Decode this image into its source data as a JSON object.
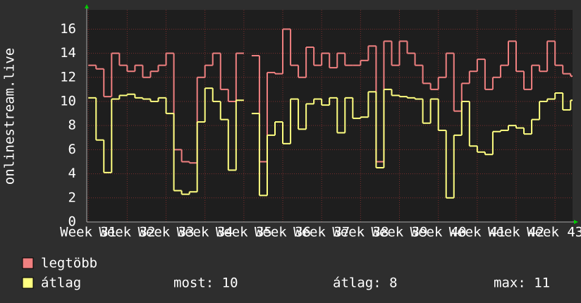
{
  "chart_data": {
    "type": "line",
    "y_label": "onlinestream.live",
    "x": [
      31,
      31.2,
      31.4,
      31.6,
      31.8,
      32,
      32.2,
      32.4,
      32.6,
      32.8,
      33,
      33.2,
      33.4,
      33.6,
      33.8,
      34,
      34.2,
      34.4,
      34.6,
      34.8,
      35,
      35.2,
      35.4,
      35.6,
      35.8,
      36,
      36.2,
      36.4,
      36.6,
      36.8,
      37,
      37.2,
      37.4,
      37.6,
      37.8,
      38,
      38.2,
      38.4,
      38.6,
      38.8,
      39,
      39.2,
      39.4,
      39.6,
      39.8,
      40,
      40.2,
      40.4,
      40.6,
      40.8,
      41,
      41.2,
      41.4,
      41.6,
      41.8,
      42,
      42.2,
      42.4,
      42.6,
      42.8,
      43,
      43.2,
      43.4
    ],
    "series": [
      {
        "name": "legtöbb",
        "color": "#f08080",
        "values": [
          13,
          12.7,
          10.4,
          14,
          13,
          12.5,
          13,
          12,
          12.5,
          13,
          14,
          6,
          5,
          4.9,
          12,
          13,
          14,
          11,
          10,
          14,
          null,
          13.8,
          5,
          12.4,
          12.3,
          16,
          13,
          12,
          14.5,
          13,
          14,
          12.8,
          14,
          13,
          13,
          13.4,
          14.6,
          5,
          15,
          13,
          15,
          14,
          13,
          11.5,
          11,
          12,
          14,
          9.2,
          11.5,
          12.5,
          13.5,
          11,
          12,
          13,
          15,
          12.5,
          11,
          13,
          12.5,
          15,
          13,
          12.3,
          12.1
        ]
      },
      {
        "name": "átlag",
        "color": "#ffff80",
        "values": [
          10.3,
          6.8,
          4.1,
          10.2,
          10.5,
          10.6,
          10.3,
          10.2,
          10,
          10.3,
          9,
          2.6,
          2.3,
          2.5,
          8.3,
          11.1,
          10,
          8.5,
          4.3,
          10.1,
          null,
          9,
          2.2,
          7.2,
          8.3,
          6.5,
          10.2,
          7.7,
          9.8,
          10.2,
          9.7,
          10.3,
          7.4,
          10.3,
          8.6,
          8.7,
          10.8,
          4.5,
          11,
          10.5,
          10.4,
          10.3,
          10.2,
          8.2,
          10.2,
          7.6,
          2,
          7.2,
          10,
          6.3,
          5.8,
          5.6,
          7.5,
          7.6,
          8,
          7.8,
          7.3,
          8.5,
          10,
          10.2,
          10.7,
          9.3,
          10.1
        ]
      }
    ],
    "xlim": [
      30.96,
      43.45
    ],
    "xticks": [
      {
        "value": 31,
        "label": "Week 31"
      },
      {
        "value": 32,
        "label": "Week 32"
      },
      {
        "value": 33,
        "label": "Week 33"
      },
      {
        "value": 34,
        "label": "Week 34"
      },
      {
        "value": 35,
        "label": "Week 35"
      },
      {
        "value": 36,
        "label": "Week 36"
      },
      {
        "value": 37,
        "label": "Week 37"
      },
      {
        "value": 38,
        "label": "Week 38"
      },
      {
        "value": 39,
        "label": "Week 39"
      },
      {
        "value": 40,
        "label": "Week 40"
      },
      {
        "value": 41,
        "label": "Week 41"
      },
      {
        "value": 42,
        "label": "Week 42"
      },
      {
        "value": 43,
        "label": "Week 43"
      }
    ],
    "ylim": [
      0,
      17.6
    ],
    "yticks": [
      0,
      2,
      4,
      6,
      8,
      10,
      12,
      14,
      16
    ],
    "grid": true,
    "stats": [
      "most: 10",
      "átlag: 8",
      "max: 11"
    ]
  }
}
